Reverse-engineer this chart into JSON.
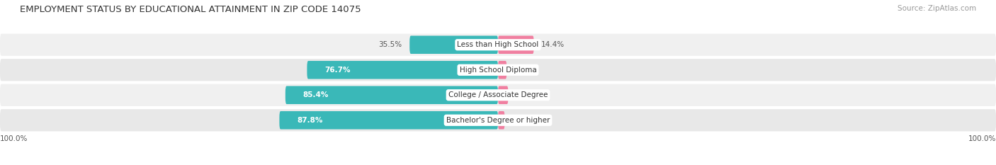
{
  "title": "EMPLOYMENT STATUS BY EDUCATIONAL ATTAINMENT IN ZIP CODE 14075",
  "source": "Source: ZipAtlas.com",
  "categories": [
    "Less than High School",
    "High School Diploma",
    "College / Associate Degree",
    "Bachelor's Degree or higher"
  ],
  "in_labor_force": [
    35.5,
    76.7,
    85.4,
    87.8
  ],
  "unemployed": [
    14.4,
    3.5,
    4.1,
    2.7
  ],
  "labor_force_color": "#3ab8b8",
  "unemployed_color": "#f07fa0",
  "row_bg_colors": [
    "#f0f0f0",
    "#e8e8e8",
    "#f0f0f0",
    "#e8e8e8"
  ],
  "axis_label_left": "100.0%",
  "axis_label_right": "100.0%",
  "title_fontsize": 9.5,
  "source_fontsize": 7.5,
  "bar_label_fontsize": 7.5,
  "category_fontsize": 7.5,
  "legend_fontsize": 8,
  "axis_fontsize": 7.5
}
